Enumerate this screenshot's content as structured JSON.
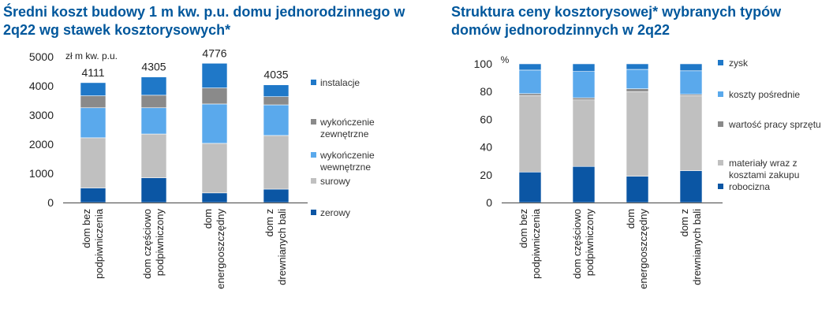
{
  "chart_data": [
    {
      "type": "bar",
      "stacked": true,
      "title": "Średni koszt budowy 1 m kw. p.u. domu jednorodzinnego w 2q22 wg stawek kosztorysowych*",
      "ylabel": "zł m kw. p.u.",
      "ylim": [
        0,
        5000
      ],
      "yticks": [
        0,
        1000,
        2000,
        3000,
        4000,
        5000
      ],
      "categories": [
        "dom bez podpiwniczenia",
        "dom częściowo podpiwniczony",
        "dom energooszczędny",
        "dom z drewnianych bali"
      ],
      "category_lines": [
        [
          "dom bez",
          "podpiwniczenia"
        ],
        [
          "dom częściowo",
          "podpiwniczony"
        ],
        [
          "dom",
          "energooszczędny"
        ],
        [
          "dom z",
          "drewnianych bali"
        ]
      ],
      "totals": [
        "4111",
        "4305",
        "4776",
        "4035"
      ],
      "series": [
        {
          "name": "zerowy",
          "color": "#0b56a4",
          "values": [
            500,
            850,
            330,
            460
          ]
        },
        {
          "name": "surowy",
          "color": "#c0c0c0",
          "values": [
            1720,
            1500,
            1700,
            1840
          ]
        },
        {
          "name": "wykończenie wewnętrzne",
          "color": "#5aa9ec",
          "values": [
            1030,
            900,
            1350,
            1050
          ]
        },
        {
          "name": "wykończenie zewnętrzne",
          "color": "#8a8a8a",
          "values": [
            410,
            430,
            550,
            280
          ]
        },
        {
          "name": "instalacje",
          "color": "#1f78c8",
          "values": [
            451,
            625,
            846,
            405
          ]
        }
      ],
      "legend_placement": "right",
      "grid": false
    },
    {
      "type": "bar",
      "stacked": true,
      "title": "Struktura ceny kosztorysowej* wybranych typów domów jednorodzinnych w 2q22",
      "ylabel": "%",
      "ylim": [
        0,
        100
      ],
      "yticks": [
        0,
        20,
        40,
        60,
        80,
        100
      ],
      "categories": [
        "dom bez podpiwniczenia",
        "dom częściowo podpiwniczony",
        "dom energooszczędny",
        "dom z drewnianych bali"
      ],
      "category_lines": [
        [
          "dom bez",
          "podpiwniczenia"
        ],
        [
          "dom częściowo",
          "podpiwniczony"
        ],
        [
          "dom",
          "energooszczędny"
        ],
        [
          "dom z",
          "drewnianych bali"
        ]
      ],
      "series": [
        {
          "name": "robocizna",
          "color": "#0b56a4",
          "values": [
            22,
            26,
            19,
            23
          ]
        },
        {
          "name": "materiały wraz z kosztami zakupu",
          "color": "#c0c0c0",
          "values": [
            55,
            48,
            61,
            54
          ]
        },
        {
          "name": "wartość pracy sprzętu",
          "color": "#8a8a8a",
          "values": [
            1.5,
            1.5,
            2,
            1
          ]
        },
        {
          "name": "koszty pośrednie",
          "color": "#5aa9ec",
          "values": [
            17,
            19,
            14,
            17
          ]
        },
        {
          "name": "zysk",
          "color": "#1f78c8",
          "values": [
            4.5,
            5.5,
            4,
            5
          ]
        }
      ],
      "legend_placement": "right",
      "grid": false
    }
  ]
}
